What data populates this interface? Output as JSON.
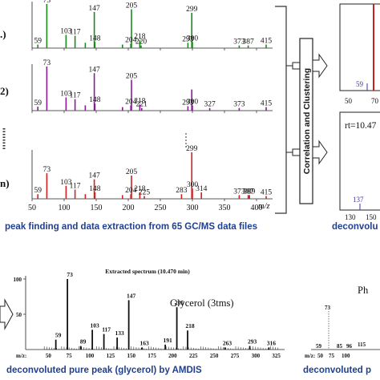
{
  "colors": {
    "green": "#1a8a1a",
    "purple": "#8b1a9a",
    "red": "#d42020",
    "black": "#111111",
    "caption_blue": "#1f3f8f",
    "frame": "#222222",
    "inset_blue": "#3a3aa8"
  },
  "icons": [
    "arrow-right-icon",
    "arrow-right-icon",
    "arrow-right-icon",
    "bracket-icon"
  ],
  "panels": {
    "sample_1_label": ".)",
    "sample_2_label": "2)",
    "sample_n_label": "n)",
    "correlation_box": "Correlation and Clustering",
    "rt_label": "rt=10.47",
    "inset_top_labels": [
      "59",
      "50",
      "70"
    ],
    "inset_bottom_labels": [
      "137",
      "130",
      "150"
    ]
  },
  "captions": {
    "top_left": "peak finding and data extraction from 65 GC/MS data files",
    "top_right": "deconvolu",
    "bottom_left": "deconvoluted pure peak (glycerol) by AMDIS",
    "bottom_right": "deconvoluted p"
  },
  "bottom_left_panel": {
    "title": "Extracted spectrum (10.470 min)",
    "compound": "Glycerol (3tms)",
    "axis_label": "m/z:"
  },
  "bottom_right_panel": {
    "compound": "Ph",
    "axis_label": "m/z:"
  },
  "chart_data": [
    {
      "type": "bar",
      "panel": "sample-1",
      "color": "green",
      "x": [
        59,
        73,
        103,
        117,
        133,
        147,
        148,
        191,
        204,
        205,
        218,
        220,
        293,
        299,
        300,
        373,
        387,
        415
      ],
      "values": [
        8,
        100,
        30,
        28,
        12,
        82,
        14,
        8,
        10,
        88,
        18,
        6,
        12,
        80,
        14,
        6,
        6,
        8
      ],
      "labeled": [
        "59",
        "73",
        "103",
        "117",
        "147",
        "148",
        "204",
        "205",
        "218",
        "220",
        "293",
        "299",
        "300",
        "373",
        "387",
        "415"
      ],
      "xlim": [
        50,
        415
      ],
      "xticks": [
        "50",
        "100",
        "150",
        "200",
        "250",
        "300",
        "350",
        "400"
      ]
    },
    {
      "type": "bar",
      "panel": "sample-2",
      "color": "purple",
      "x": [
        59,
        73,
        103,
        117,
        133,
        147,
        148,
        191,
        204,
        205,
        218,
        221,
        293,
        299,
        300,
        327,
        373,
        415
      ],
      "values": [
        9,
        100,
        30,
        26,
        12,
        85,
        16,
        8,
        12,
        70,
        14,
        6,
        10,
        48,
        12,
        6,
        6,
        8
      ],
      "labeled": [
        "59",
        "73",
        "103",
        "117",
        "147",
        "148",
        "204",
        "205",
        "218",
        "221",
        "293",
        "300",
        "327",
        "373",
        "415"
      ],
      "xlim": [
        50,
        415
      ],
      "xticks": [
        "50",
        "100",
        "150",
        "200",
        "250",
        "300",
        "350",
        "400"
      ]
    },
    {
      "type": "bar",
      "panel": "sample-n",
      "color": "red",
      "x": [
        59,
        73,
        103,
        117,
        133,
        147,
        148,
        191,
        204,
        205,
        218,
        225,
        283,
        299,
        300,
        314,
        373,
        387,
        389,
        415
      ],
      "values": [
        10,
        55,
        28,
        20,
        10,
        42,
        14,
        8,
        10,
        50,
        14,
        6,
        10,
        100,
        22,
        14,
        8,
        8,
        8,
        6
      ],
      "labeled": [
        "59",
        "73",
        "103",
        "117",
        "147",
        "148",
        "204",
        "205",
        "218",
        "225",
        "283",
        "299",
        "300",
        "314",
        "373",
        "387",
        "389",
        "415"
      ],
      "xlim": [
        50,
        415
      ],
      "xticks": [
        "50",
        "100",
        "150",
        "200",
        "250",
        "300",
        "350",
        "400"
      ],
      "xlabel": "m/z"
    },
    {
      "type": "bar",
      "panel": "glycerol",
      "color": "black",
      "x": [
        59,
        73,
        89,
        103,
        117,
        133,
        147,
        163,
        191,
        205,
        218,
        263,
        293,
        316
      ],
      "values": [
        14,
        100,
        5,
        28,
        22,
        17,
        70,
        3,
        7,
        60,
        27,
        3,
        5,
        3
      ],
      "labeled": [
        "59",
        "73",
        "89",
        "103",
        "117",
        "133",
        "147",
        "163",
        "191",
        "205",
        "218",
        "263",
        "293",
        "316"
      ],
      "yticks": [
        "50",
        "100"
      ],
      "xticks": [
        "50",
        "75",
        "100",
        "125",
        "150",
        "175",
        "200",
        "225",
        "250",
        "275",
        "300",
        "325"
      ]
    }
  ]
}
